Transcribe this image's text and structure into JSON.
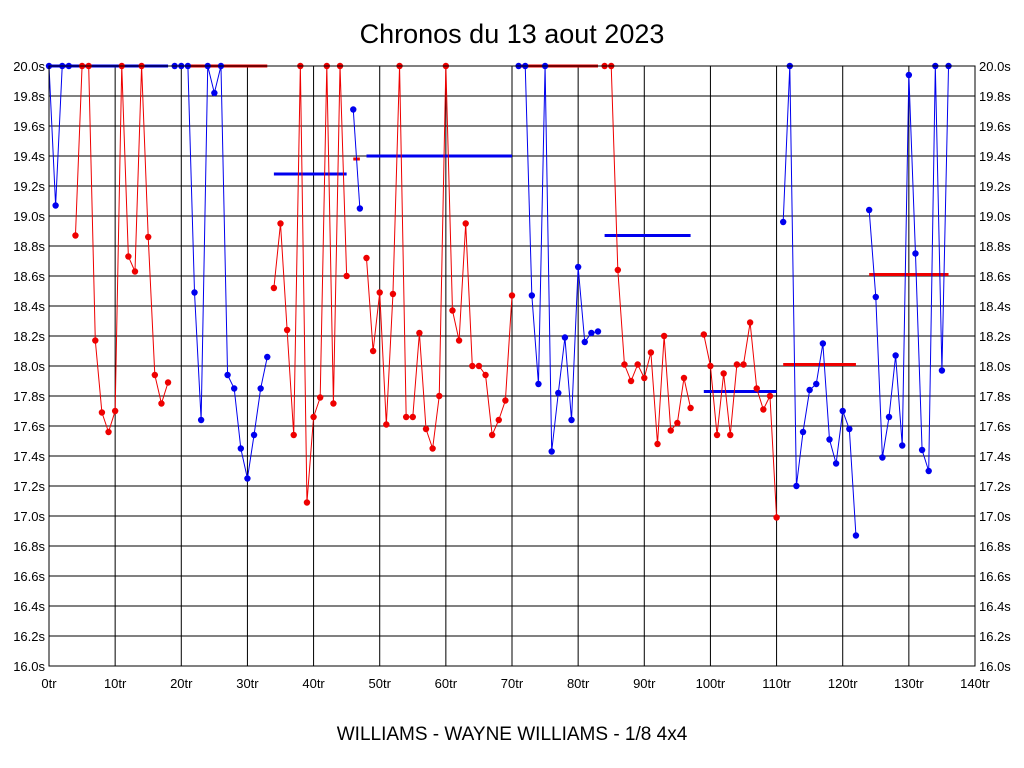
{
  "chart_data": {
    "type": "line",
    "title": "Chronos du 13 aout 2023",
    "subtitle": "WILLIAMS - WAYNE WILLIAMS - 1/8 4x4",
    "x_ticks": [
      {
        "v": 0,
        "label": "0tr"
      },
      {
        "v": 10,
        "label": "10tr"
      },
      {
        "v": 20,
        "label": "20tr"
      },
      {
        "v": 30,
        "label": "30tr"
      },
      {
        "v": 40,
        "label": "40tr"
      },
      {
        "v": 50,
        "label": "50tr"
      },
      {
        "v": 60,
        "label": "60tr"
      },
      {
        "v": 70,
        "label": "70tr"
      },
      {
        "v": 80,
        "label": "80tr"
      },
      {
        "v": 90,
        "label": "90tr"
      },
      {
        "v": 100,
        "label": "100tr"
      },
      {
        "v": 110,
        "label": "110tr"
      },
      {
        "v": 120,
        "label": "120tr"
      },
      {
        "v": 130,
        "label": "130tr"
      },
      {
        "v": 140,
        "label": "140tr"
      }
    ],
    "y_ticks": [
      {
        "v": 16.0,
        "label": "16.0s"
      },
      {
        "v": 16.2,
        "label": "16.2s"
      },
      {
        "v": 16.4,
        "label": "16.4s"
      },
      {
        "v": 16.6,
        "label": "16.6s"
      },
      {
        "v": 16.8,
        "label": "16.8s"
      },
      {
        "v": 17.0,
        "label": "17.0s"
      },
      {
        "v": 17.2,
        "label": "17.2s"
      },
      {
        "v": 17.4,
        "label": "17.4s"
      },
      {
        "v": 17.6,
        "label": "17.6s"
      },
      {
        "v": 17.8,
        "label": "17.8s"
      },
      {
        "v": 18.0,
        "label": "18.0s"
      },
      {
        "v": 18.2,
        "label": "18.2s"
      },
      {
        "v": 18.4,
        "label": "18.4s"
      },
      {
        "v": 18.6,
        "label": "18.6s"
      },
      {
        "v": 18.8,
        "label": "18.8s"
      },
      {
        "v": 19.0,
        "label": "19.0s"
      },
      {
        "v": 19.2,
        "label": "19.2s"
      },
      {
        "v": 19.4,
        "label": "19.4s"
      },
      {
        "v": 19.6,
        "label": "19.6s"
      },
      {
        "v": 19.8,
        "label": "19.8s"
      },
      {
        "v": 20.0,
        "label": "20.0s"
      }
    ],
    "xlim": [
      0,
      140
    ],
    "ylim": [
      16.0,
      20.0
    ],
    "grid": true,
    "colors": {
      "blue": "#0000ee",
      "red": "#ee0000"
    },
    "series": [
      {
        "color": "#0000ee",
        "points": [
          [
            0,
            20.0
          ],
          [
            1,
            19.07
          ],
          [
            2,
            20.0
          ],
          [
            3,
            20.0
          ]
        ]
      },
      {
        "color": "#ee0000",
        "points": [
          [
            4,
            18.87
          ],
          [
            5,
            20.0
          ],
          [
            6,
            20.0
          ],
          [
            7,
            18.17
          ],
          [
            8,
            17.69
          ],
          [
            9,
            17.56
          ],
          [
            10,
            17.7
          ],
          [
            11,
            20.0
          ],
          [
            12,
            18.73
          ],
          [
            13,
            18.63
          ],
          [
            14,
            20.0
          ],
          [
            15,
            18.86
          ],
          [
            16,
            17.94
          ],
          [
            17,
            17.75
          ],
          [
            18,
            17.89
          ]
        ]
      },
      {
        "color": "#0000ee",
        "points": [
          [
            19,
            20.0
          ],
          [
            20,
            20.0
          ],
          [
            21,
            20.0
          ],
          [
            22,
            18.49
          ],
          [
            23,
            17.64
          ],
          [
            24,
            20.0
          ],
          [
            25,
            19.82
          ],
          [
            26,
            20.0
          ],
          [
            27,
            17.94
          ],
          [
            28,
            17.85
          ],
          [
            29,
            17.45
          ],
          [
            30,
            17.25
          ],
          [
            31,
            17.54
          ],
          [
            32,
            17.85
          ],
          [
            33,
            18.06
          ]
        ]
      },
      {
        "color": "#ee0000",
        "points": [
          [
            34,
            18.52
          ],
          [
            35,
            18.95
          ],
          [
            36,
            18.24
          ],
          [
            37,
            17.54
          ],
          [
            38,
            20.0
          ],
          [
            39,
            17.09
          ],
          [
            40,
            17.66
          ],
          [
            41,
            17.79
          ],
          [
            42,
            20.0
          ],
          [
            43,
            17.75
          ],
          [
            44,
            20.0
          ],
          [
            45,
            18.6
          ]
        ]
      },
      {
        "color": "#0000ee",
        "points": [
          [
            46,
            19.71
          ],
          [
            47,
            19.05
          ]
        ]
      },
      {
        "color": "#ee0000",
        "points": [
          [
            48,
            18.72
          ],
          [
            49,
            18.1
          ],
          [
            50,
            18.49
          ],
          [
            51,
            17.61
          ],
          [
            52,
            18.48
          ],
          [
            53,
            20.0
          ],
          [
            54,
            17.66
          ],
          [
            55,
            17.66
          ],
          [
            56,
            18.22
          ],
          [
            57,
            17.58
          ],
          [
            58,
            17.45
          ],
          [
            59,
            17.8
          ],
          [
            60,
            20.0
          ],
          [
            61,
            18.37
          ],
          [
            62,
            18.17
          ],
          [
            63,
            18.95
          ],
          [
            64,
            18.0
          ],
          [
            65,
            18.0
          ],
          [
            66,
            17.94
          ],
          [
            67,
            17.54
          ],
          [
            68,
            17.64
          ],
          [
            69,
            17.77
          ],
          [
            70,
            18.47
          ]
        ]
      },
      {
        "color": "#0000ee",
        "points": [
          [
            71,
            20.0
          ],
          [
            72,
            20.0
          ],
          [
            73,
            18.47
          ],
          [
            74,
            17.88
          ],
          [
            75,
            20.0
          ],
          [
            76,
            17.43
          ],
          [
            77,
            17.82
          ],
          [
            78,
            18.19
          ],
          [
            79,
            17.64
          ],
          [
            80,
            18.66
          ],
          [
            81,
            18.16
          ],
          [
            82,
            18.22
          ],
          [
            83,
            18.23
          ]
        ]
      },
      {
        "color": "#ee0000",
        "points": [
          [
            84,
            20.0
          ],
          [
            85,
            20.0
          ],
          [
            86,
            18.64
          ],
          [
            87,
            18.01
          ],
          [
            88,
            17.9
          ],
          [
            89,
            18.01
          ],
          [
            90,
            17.92
          ],
          [
            91,
            18.09
          ],
          [
            92,
            17.48
          ],
          [
            93,
            18.2
          ],
          [
            94,
            17.57
          ],
          [
            95,
            17.62
          ],
          [
            96,
            17.92
          ],
          [
            97,
            17.72
          ]
        ]
      },
      {
        "color": "#ee0000",
        "points": [
          [
            99,
            18.21
          ],
          [
            100,
            18.0
          ],
          [
            101,
            17.54
          ],
          [
            102,
            17.95
          ],
          [
            103,
            17.54
          ],
          [
            104,
            18.01
          ],
          [
            105,
            18.01
          ],
          [
            106,
            18.29
          ],
          [
            107,
            17.85
          ],
          [
            108,
            17.71
          ],
          [
            109,
            17.8
          ],
          [
            110,
            16.99
          ]
        ]
      },
      {
        "color": "#0000ee",
        "points": [
          [
            111,
            18.96
          ],
          [
            112,
            20.0
          ],
          [
            113,
            17.2
          ],
          [
            114,
            17.56
          ],
          [
            115,
            17.84
          ],
          [
            116,
            17.88
          ],
          [
            117,
            18.15
          ],
          [
            118,
            17.51
          ],
          [
            119,
            17.35
          ],
          [
            120,
            17.7
          ],
          [
            121,
            17.58
          ],
          [
            122,
            16.87
          ]
        ]
      },
      {
        "color": "#0000ee",
        "points": [
          [
            124,
            19.04
          ],
          [
            125,
            18.46
          ],
          [
            126,
            17.39
          ],
          [
            127,
            17.66
          ],
          [
            128,
            18.07
          ],
          [
            129,
            17.47
          ],
          [
            130,
            19.94
          ],
          [
            131,
            18.75
          ],
          [
            132,
            17.44
          ],
          [
            133,
            17.3
          ],
          [
            134,
            20.0
          ],
          [
            135,
            17.97
          ],
          [
            136,
            20.0
          ]
        ]
      }
    ],
    "segments": [
      {
        "color": "#0000ee",
        "x": [
          0,
          18
        ],
        "y": 20.0
      },
      {
        "color": "#ee0000",
        "x": [
          21,
          33
        ],
        "y": 20.0
      },
      {
        "color": "#0000ee",
        "x": [
          34,
          45
        ],
        "y": 19.28
      },
      {
        "color": "#ee0000",
        "x": [
          46,
          47
        ],
        "y": 19.38
      },
      {
        "color": "#0000ee",
        "x": [
          48,
          70
        ],
        "y": 19.4
      },
      {
        "color": "#ee0000",
        "x": [
          71,
          83
        ],
        "y": 20.0
      },
      {
        "color": "#0000ee",
        "x": [
          84,
          97
        ],
        "y": 18.87
      },
      {
        "color": "#0000ee",
        "x": [
          99,
          110
        ],
        "y": 17.83
      },
      {
        "color": "#ee0000",
        "x": [
          111,
          122
        ],
        "y": 18.01
      },
      {
        "color": "#ee0000",
        "x": [
          124,
          136
        ],
        "y": 18.61
      }
    ]
  }
}
